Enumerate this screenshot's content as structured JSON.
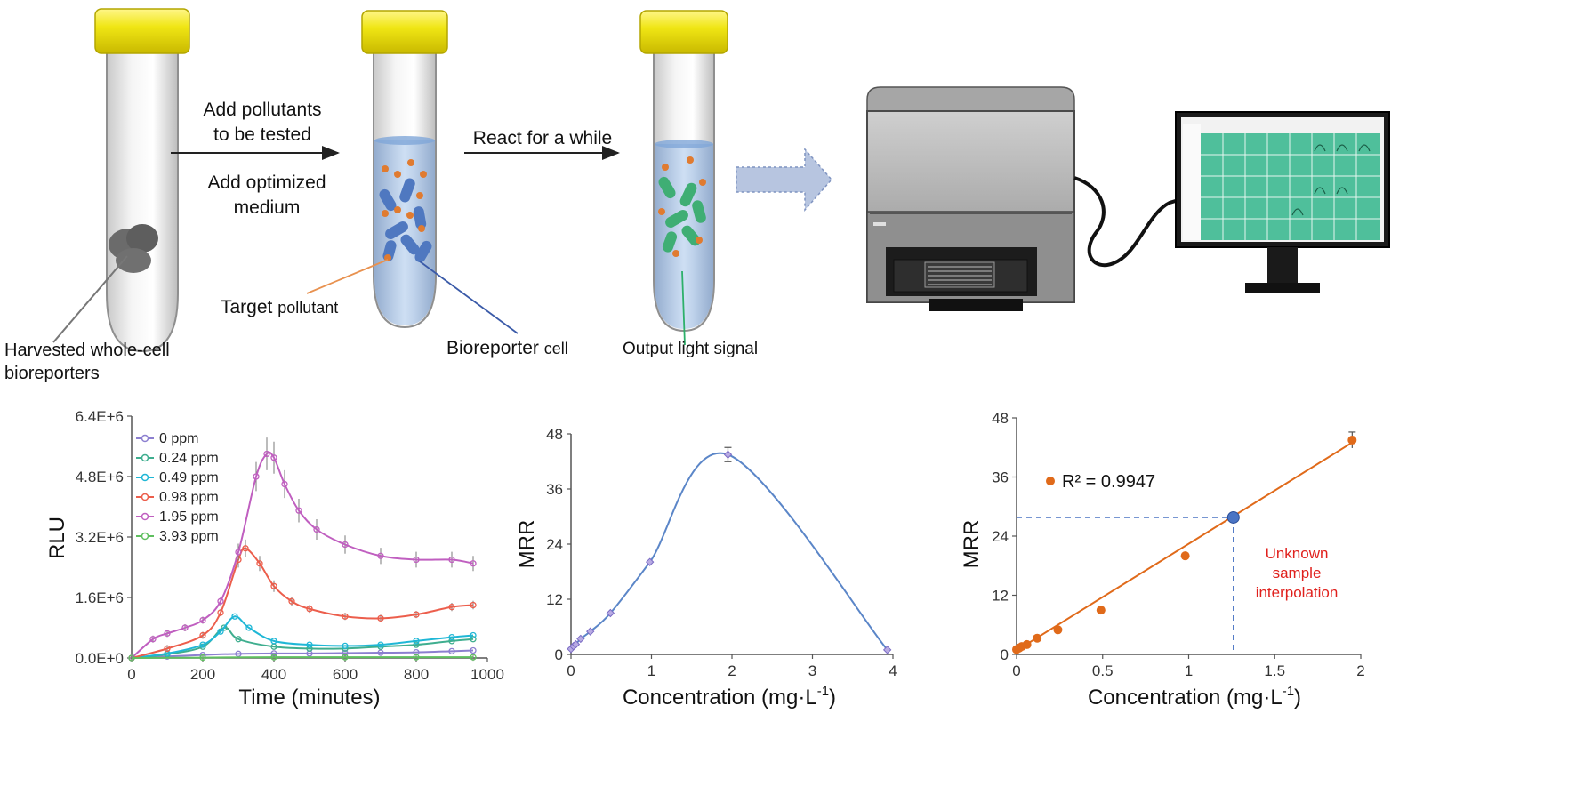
{
  "diagram": {
    "tube1_label_line1": "Harvested whole-cell",
    "tube1_label_line2": "bioreporters",
    "step1_line1": "Add pollutants",
    "step1_line2": "to be tested",
    "step2_line1": "Add optimized",
    "step2_line2": "medium",
    "target_pollutant_big": "Target ",
    "target_pollutant_small": "pollutant",
    "bioreporter_big": "Bioreporter ",
    "bioreporter_small": "cell",
    "react_label": "React for a while",
    "output_label": "Output light signal",
    "colors": {
      "cap": "#f0e614",
      "liquid": "#8fb6e6",
      "bioreporter": "#4f78c0",
      "bioreporter_active": "#3fae74",
      "pollutant": "#e07b30",
      "arrow_fill": "#b7c5e0"
    }
  },
  "chart_data": [
    {
      "type": "line",
      "xlabel": "Time (minutes)",
      "ylabel": "RLU",
      "xticks": [
        "0",
        "200",
        "400",
        "600",
        "800",
        "1000"
      ],
      "yticks": [
        "0.0E+0",
        "1.6E+6",
        "3.2E+6",
        "4.8E+6",
        "6.4E+6"
      ],
      "xlim": [
        0,
        1000
      ],
      "ylim": [
        0,
        6400000
      ],
      "series": [
        {
          "name": "0 ppm",
          "color": "#8c7fd0",
          "x": [
            0,
            100,
            200,
            300,
            400,
            500,
            600,
            700,
            800,
            900,
            960
          ],
          "values": [
            0,
            40000,
            80000,
            110000,
            120000,
            120000,
            130000,
            140000,
            150000,
            180000,
            200000
          ]
        },
        {
          "name": "0.24 ppm",
          "color": "#3fae8f",
          "x": [
            0,
            100,
            200,
            260,
            300,
            400,
            500,
            600,
            700,
            800,
            900,
            960
          ],
          "values": [
            0,
            100000,
            300000,
            800000,
            500000,
            300000,
            250000,
            250000,
            300000,
            350000,
            450000,
            500000
          ]
        },
        {
          "name": "0.49 ppm",
          "color": "#1fb7d6",
          "x": [
            0,
            100,
            200,
            250,
            290,
            330,
            400,
            500,
            600,
            700,
            800,
            900,
            960
          ],
          "values": [
            0,
            120000,
            350000,
            700000,
            1100000,
            800000,
            450000,
            350000,
            320000,
            350000,
            450000,
            550000,
            600000
          ]
        },
        {
          "name": "0.98 ppm",
          "color": "#ec5e4c",
          "x": [
            0,
            100,
            200,
            250,
            300,
            320,
            360,
            400,
            450,
            500,
            600,
            700,
            800,
            900,
            960
          ],
          "values": [
            0,
            250000,
            600000,
            1200000,
            2600000,
            2900000,
            2500000,
            1900000,
            1500000,
            1300000,
            1100000,
            1050000,
            1150000,
            1350000,
            1400000
          ]
        },
        {
          "name": "1.95 ppm",
          "color": "#c05fc0",
          "x": [
            0,
            60,
            100,
            150,
            200,
            250,
            300,
            350,
            380,
            400,
            430,
            470,
            520,
            600,
            700,
            800,
            900,
            960
          ],
          "values": [
            0,
            500000,
            650000,
            800000,
            1000000,
            1500000,
            2800000,
            4800000,
            5400000,
            5300000,
            4600000,
            3900000,
            3400000,
            3000000,
            2700000,
            2600000,
            2600000,
            2500000
          ]
        },
        {
          "name": "3.93 ppm",
          "color": "#5fbf5f",
          "x": [
            0,
            200,
            400,
            600,
            800,
            960
          ],
          "values": [
            0,
            10000,
            20000,
            20000,
            20000,
            20000
          ]
        }
      ],
      "grid": false,
      "legend": "top-left"
    },
    {
      "type": "line",
      "xlabel": "Concentration (mg·L",
      "xlabel_sup": "-1",
      "xlabel_end": ")",
      "ylabel": "MRR",
      "xticks": [
        "0",
        "1",
        "2",
        "3",
        "4"
      ],
      "yticks": [
        "0",
        "12",
        "24",
        "36",
        "48"
      ],
      "xlim": [
        0,
        4
      ],
      "ylim": [
        0,
        48
      ],
      "x": [
        0,
        0.03,
        0.06,
        0.12,
        0.24,
        0.49,
        0.98,
        1.95,
        3.93
      ],
      "values": [
        1.2,
        1.8,
        2.2,
        3.4,
        5.0,
        9.0,
        20.1,
        43.5,
        1.0
      ],
      "color": "#5b86c8",
      "grid": false
    },
    {
      "type": "scatter",
      "xlabel": "Concentration (mg·L",
      "xlabel_sup": "-1",
      "xlabel_end": ")",
      "ylabel": "MRR",
      "xticks": [
        "0",
        "0.5",
        "1",
        "1.5",
        "2"
      ],
      "yticks": [
        "0",
        "12",
        "24",
        "36",
        "48"
      ],
      "xlim": [
        0,
        2
      ],
      "ylim": [
        0,
        48
      ],
      "x": [
        0,
        0.015,
        0.03,
        0.06,
        0.12,
        0.24,
        0.49,
        0.98,
        1.95
      ],
      "values": [
        1.0,
        1.3,
        1.6,
        2.0,
        3.3,
        5.0,
        9.0,
        20.0,
        43.5
      ],
      "trend_line": [
        [
          0,
          0.8
        ],
        [
          1.95,
          43.0
        ]
      ],
      "r2_label": "R² = 0.9947",
      "unknown_point": [
        1.26,
        27.8
      ],
      "annotation": [
        "Unknown",
        "sample",
        "interpolation"
      ],
      "point_color": "#e06a1a",
      "unknown_color": "#4a74c4",
      "annotation_color": "#e0201c",
      "grid": false
    }
  ]
}
